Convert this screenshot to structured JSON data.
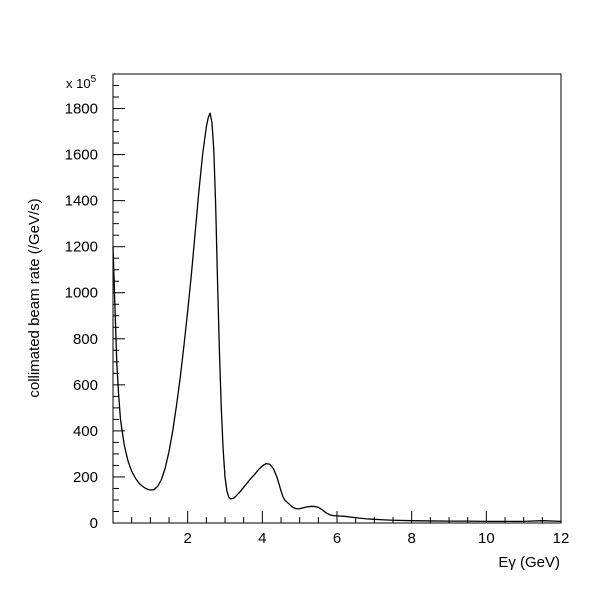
{
  "chart_data": {
    "type": "line",
    "title": "",
    "xlabel": "Eγ (GeV)",
    "ylabel": "collimated beam rate (/GeV/s)",
    "y_multiplier": "x 10",
    "y_multiplier_exponent": "5",
    "xlim": [
      0,
      12
    ],
    "ylim": [
      0,
      1950
    ],
    "x_ticks": [
      2,
      4,
      6,
      8,
      10,
      12
    ],
    "y_ticks": [
      0,
      200,
      400,
      600,
      800,
      1000,
      1200,
      1400,
      1600,
      1800
    ],
    "grid": false,
    "series": [
      {
        "line_color": "#000000",
        "x": [
          0.0,
          0.05,
          0.1,
          0.15,
          0.2,
          0.3,
          0.4,
          0.5,
          0.6,
          0.7,
          0.8,
          0.9,
          1.0,
          1.1,
          1.2,
          1.3,
          1.4,
          1.5,
          1.6,
          1.7,
          1.8,
          1.9,
          2.0,
          2.1,
          2.2,
          2.3,
          2.4,
          2.5,
          2.55,
          2.6,
          2.65,
          2.7,
          2.75,
          2.8,
          2.85,
          2.9,
          2.95,
          3.0,
          3.05,
          3.1,
          3.15,
          3.2,
          3.25,
          3.3,
          3.4,
          3.5,
          3.6,
          3.7,
          3.8,
          3.9,
          4.0,
          4.1,
          4.2,
          4.3,
          4.4,
          4.5,
          4.55,
          4.6,
          4.7,
          4.8,
          4.9,
          5.0,
          5.1,
          5.2,
          5.3,
          5.4,
          5.5,
          5.6,
          5.7,
          5.8,
          5.9,
          6.0,
          6.1,
          6.2,
          6.4,
          6.6,
          6.8,
          7.0,
          7.2,
          7.5,
          8.0,
          8.5,
          9.0,
          9.5,
          10.0,
          10.5,
          11.0,
          11.5,
          12.0
        ],
        "y": [
          1200,
          950,
          700,
          560,
          450,
          340,
          270,
          225,
          195,
          172,
          158,
          148,
          143,
          145,
          160,
          190,
          240,
          310,
          400,
          510,
          630,
          770,
          920,
          1080,
          1260,
          1440,
          1600,
          1720,
          1760,
          1780,
          1740,
          1620,
          1380,
          1050,
          750,
          500,
          320,
          200,
          140,
          112,
          105,
          106,
          110,
          118,
          135,
          155,
          175,
          195,
          212,
          232,
          248,
          258,
          255,
          235,
          195,
          140,
          115,
          100,
          85,
          70,
          62,
          62,
          66,
          70,
          72,
          72,
          68,
          58,
          45,
          36,
          32,
          31,
          30,
          29,
          25,
          21,
          18,
          16,
          14,
          12,
          10,
          9,
          8,
          8,
          7,
          7,
          7,
          10,
          7
        ]
      }
    ]
  }
}
